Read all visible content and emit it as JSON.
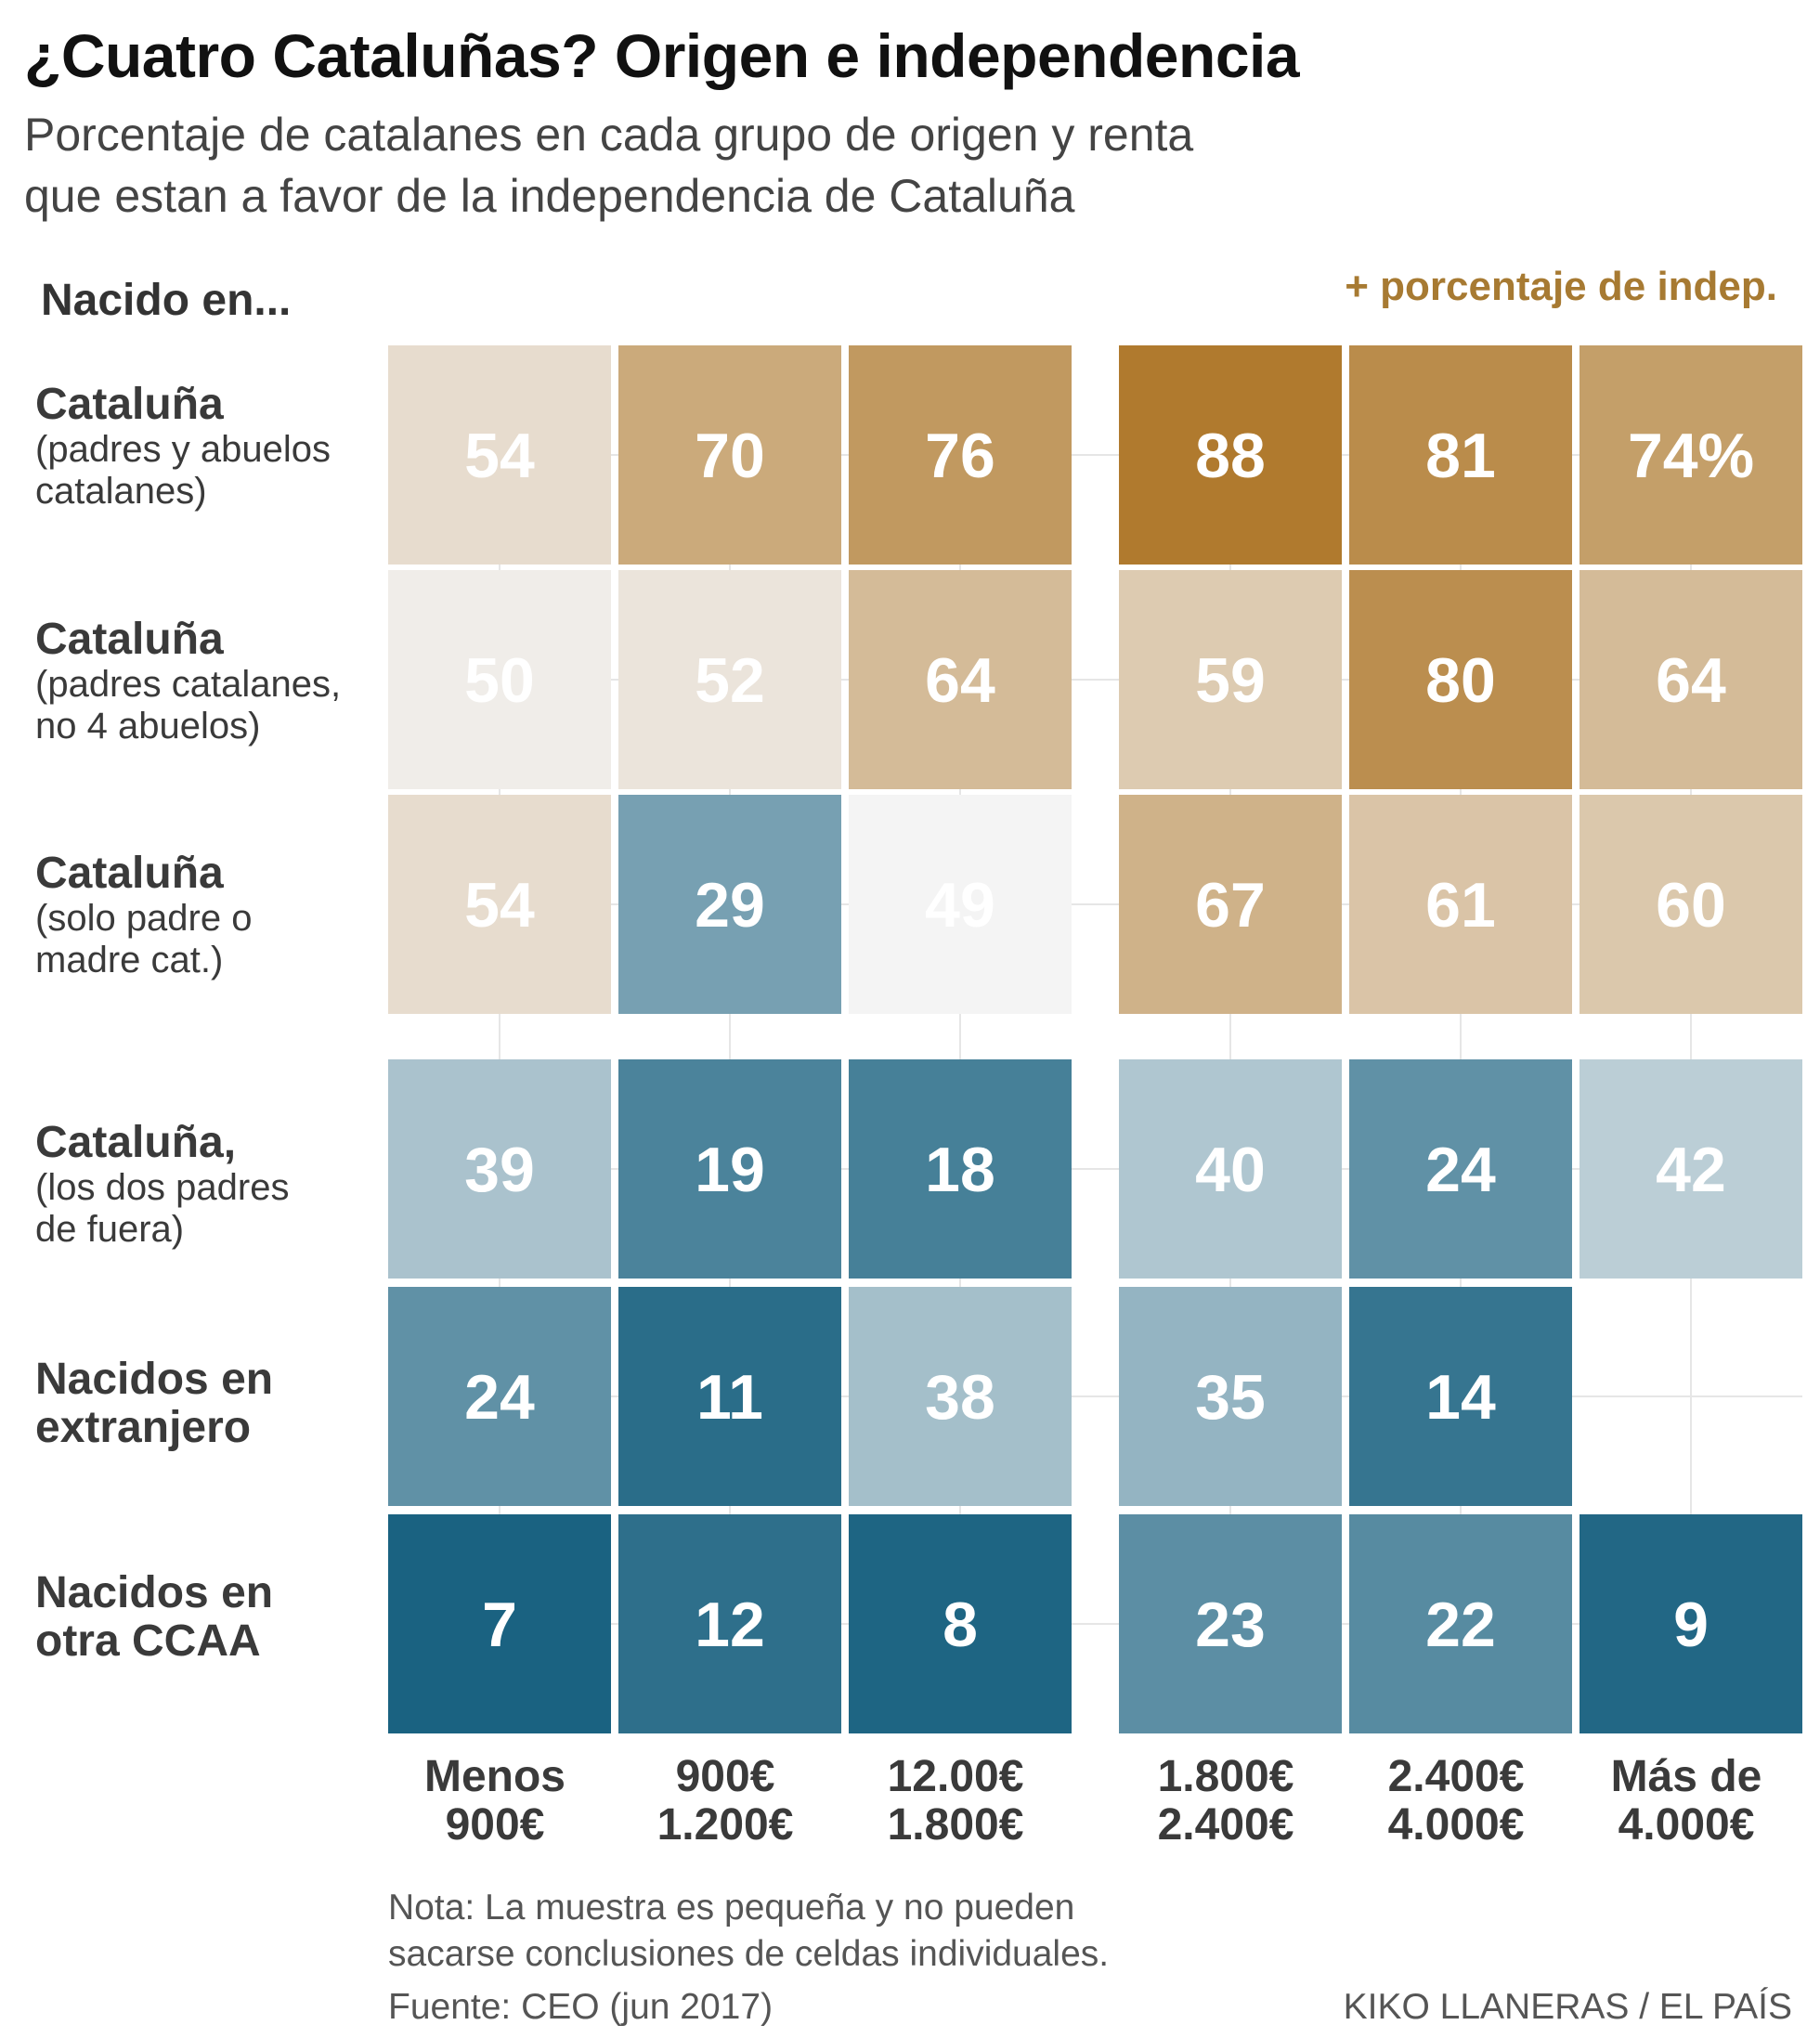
{
  "header": {
    "title": "¿Cuatro Cataluñas? Origen e independencia",
    "subtitle_line1": "Porcentaje de catalanes en cada grupo de origen y renta",
    "subtitle_line2": "que estan a favor de la independencia de Cataluña",
    "row_header": "Nacido en...",
    "legend_label": "+ porcentaje de indep."
  },
  "rows": [
    {
      "main": "Cataluña",
      "sub1": "(padres y abuelos",
      "sub2": "catalanes)"
    },
    {
      "main": "Cataluña",
      "sub1": "(padres catalanes,",
      "sub2": "no 4 abuelos)"
    },
    {
      "main": "Cataluña",
      "sub1": "(solo padre o",
      "sub2": "madre cat.)"
    },
    {
      "main": "Cataluña,",
      "sub1": "(los dos padres",
      "sub2": "de fuera)"
    },
    {
      "main": "Nacidos en",
      "main2": "extranjero"
    },
    {
      "main": "Nacidos en",
      "main2": "otra CCAA"
    }
  ],
  "columns": [
    {
      "line1": "Menos",
      "line2": "900€"
    },
    {
      "line1": "900€",
      "line2": "1.200€"
    },
    {
      "line1": "12.00€",
      "line2": "1.800€"
    },
    {
      "line1": "1.800€",
      "line2": "2.400€"
    },
    {
      "line1": "2.400€",
      "line2": "4.000€"
    },
    {
      "line1": "Más de",
      "line2": "4.000€"
    }
  ],
  "footer": {
    "note_line1": "Nota: La muestra es pequeña y no pueden",
    "note_line2": "sacarse conclusiones de celdas individuales.",
    "source": "Fuente: CEO (jun 2017)",
    "credit": "KIKO LLANERAS / EL PAÍS"
  },
  "chart_data": {
    "type": "heatmap",
    "title": "¿Cuatro Cataluñas? Origen e independencia",
    "row_labels": [
      "Cataluña (padres y abuelos catalanes)",
      "Cataluña (padres catalanes, no 4 abuelos)",
      "Cataluña (solo padre o madre cat.)",
      "Cataluña, (los dos padres de fuera)",
      "Nacidos en extranjero",
      "Nacidos en otra CCAA"
    ],
    "col_labels": [
      "Menos 900€",
      "900€ 1.200€",
      "12.00€ 1.800€",
      "1.800€ 2.400€",
      "2.400€ 4.000€",
      "Más de 4.000€"
    ],
    "values": [
      [
        54,
        70,
        76,
        88,
        81,
        74
      ],
      [
        50,
        52,
        64,
        59,
        80,
        64
      ],
      [
        54,
        29,
        49,
        67,
        61,
        60
      ],
      [
        39,
        19,
        18,
        40,
        24,
        42
      ],
      [
        24,
        11,
        38,
        35,
        14,
        null
      ],
      [
        7,
        12,
        8,
        23,
        22,
        9
      ]
    ],
    "unit_suffix": "%",
    "color_scale": {
      "midpoint": 49,
      "low_color": "#1a6281",
      "mid_color": "#f4f4f4",
      "high_color": "#b07a2e"
    }
  }
}
